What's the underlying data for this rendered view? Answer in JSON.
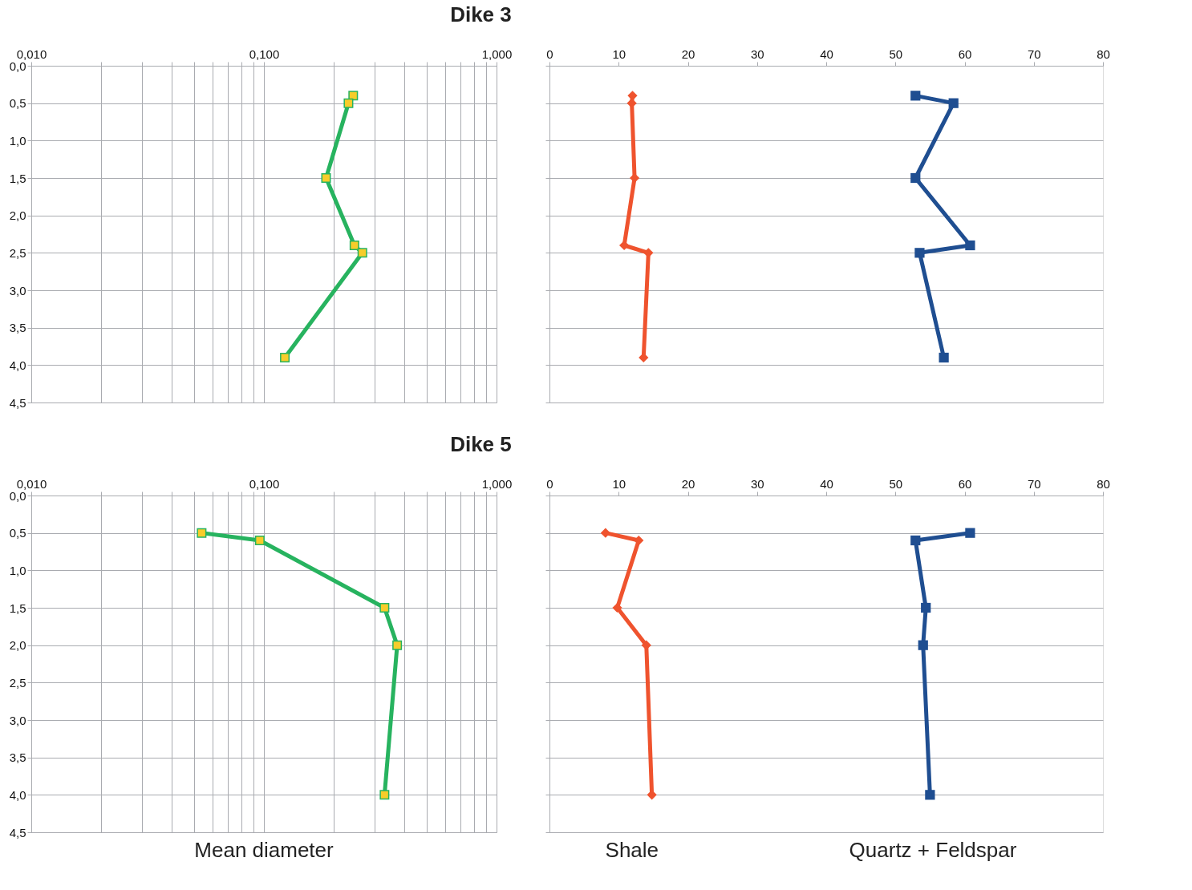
{
  "chart_data": [
    {
      "type": "line",
      "title": "Dike 3",
      "orientation": "horizontal",
      "log": "x",
      "grid": true,
      "marker": "square",
      "xlim": [
        0.01,
        1
      ],
      "xticks": [
        {
          "value": 0.01,
          "label": "0,010"
        },
        {
          "value": 0.02,
          "label": null
        },
        {
          "value": 0.03,
          "label": null
        },
        {
          "value": 0.04,
          "label": null
        },
        {
          "value": 0.05,
          "label": null
        },
        {
          "value": 0.06,
          "label": null
        },
        {
          "value": 0.07,
          "label": null
        },
        {
          "value": 0.08,
          "label": null
        },
        {
          "value": 0.09,
          "label": null
        },
        {
          "value": 0.1,
          "label": "0,100"
        },
        {
          "value": 0.2,
          "label": null
        },
        {
          "value": 0.3,
          "label": null
        },
        {
          "value": 0.4,
          "label": null
        },
        {
          "value": 0.5,
          "label": null
        },
        {
          "value": 0.6,
          "label": null
        },
        {
          "value": 0.7,
          "label": null
        },
        {
          "value": 0.8,
          "label": null
        },
        {
          "value": 0.9,
          "label": null
        },
        {
          "value": 1,
          "label": "1,000"
        }
      ],
      "ylim": [
        4.5,
        0
      ],
      "yticks": [
        {
          "value": 0,
          "label": "0,0"
        },
        {
          "value": 0.5,
          "label": "0,5"
        },
        {
          "value": 1,
          "label": "1,0"
        },
        {
          "value": 1.5,
          "label": "1,5"
        },
        {
          "value": 2,
          "label": "2,0"
        },
        {
          "value": 2.5,
          "label": "2,5"
        },
        {
          "value": 3,
          "label": "3,0"
        },
        {
          "value": 3.5,
          "label": "3,5"
        },
        {
          "value": 4,
          "label": "4,0"
        },
        {
          "value": 4.5,
          "label": "4,5"
        }
      ],
      "series": [
        {
          "color": "#27b35f",
          "x": [
            0.4,
            0.5,
            1.5,
            2.4,
            2.5,
            3.9
          ],
          "values": [
            0.242,
            0.231,
            0.185,
            0.245,
            0.265,
            0.123
          ]
        }
      ]
    },
    {
      "type": "line",
      "orientation": "horizontal",
      "grid": "y",
      "tick_labels": "x",
      "xlim": [
        0,
        80
      ],
      "xticks": [
        0,
        10,
        20,
        30,
        40,
        50,
        60,
        70,
        80
      ],
      "ylim": [
        4.5,
        0
      ],
      "yticks": [
        {
          "value": 0,
          "label": null
        },
        {
          "value": 0.5,
          "label": null
        },
        {
          "value": 1,
          "label": null
        },
        {
          "value": 1.5,
          "label": null
        },
        {
          "value": 2,
          "label": null
        },
        {
          "value": 2.5,
          "label": null
        },
        {
          "value": 3,
          "label": null
        },
        {
          "value": 3.5,
          "label": null
        },
        {
          "value": 4,
          "label": null
        },
        {
          "value": 4.5,
          "label": null
        }
      ],
      "series": [
        {
          "color": "#ef532e",
          "marker": "diamond",
          "x": [
            0.4,
            0.5,
            1.5,
            2.4,
            2.5,
            3.9
          ],
          "values": [
            12.0,
            11.9,
            12.3,
            10.8,
            14.3,
            13.6
          ]
        },
        {
          "color": "#1f4e91",
          "marker": "square",
          "x": [
            0.4,
            0.5,
            1.5,
            2.4,
            2.5,
            3.9
          ],
          "values": [
            52.9,
            58.4,
            52.9,
            60.8,
            53.5,
            57.0
          ]
        }
      ]
    },
    {
      "type": "line",
      "title": "Dike 5",
      "xlabel": "Mean diameter",
      "orientation": "horizontal",
      "log": "x",
      "grid": true,
      "marker": "square",
      "xlim": [
        0.01,
        1
      ],
      "xticks": [
        {
          "value": 0.01,
          "label": "0,010"
        },
        {
          "value": 0.02,
          "label": null
        },
        {
          "value": 0.03,
          "label": null
        },
        {
          "value": 0.04,
          "label": null
        },
        {
          "value": 0.05,
          "label": null
        },
        {
          "value": 0.06,
          "label": null
        },
        {
          "value": 0.07,
          "label": null
        },
        {
          "value": 0.08,
          "label": null
        },
        {
          "value": 0.09,
          "label": null
        },
        {
          "value": 0.1,
          "label": "0,100"
        },
        {
          "value": 0.2,
          "label": null
        },
        {
          "value": 0.3,
          "label": null
        },
        {
          "value": 0.4,
          "label": null
        },
        {
          "value": 0.5,
          "label": null
        },
        {
          "value": 0.6,
          "label": null
        },
        {
          "value": 0.7,
          "label": null
        },
        {
          "value": 0.8,
          "label": null
        },
        {
          "value": 0.9,
          "label": null
        },
        {
          "value": 1,
          "label": "1,000"
        }
      ],
      "ylim": [
        4.5,
        0
      ],
      "yticks": [
        {
          "value": 0,
          "label": "0,0"
        },
        {
          "value": 0.5,
          "label": "0,5"
        },
        {
          "value": 1,
          "label": "1,0"
        },
        {
          "value": 1.5,
          "label": "1,5"
        },
        {
          "value": 2,
          "label": "2,0"
        },
        {
          "value": 2.5,
          "label": "2,5"
        },
        {
          "value": 3,
          "label": "3,0"
        },
        {
          "value": 3.5,
          "label": "3,5"
        },
        {
          "value": 4,
          "label": "4,0"
        },
        {
          "value": 4.5,
          "label": "4,5"
        }
      ],
      "series": [
        {
          "color": "#27b35f",
          "x": [
            0.5,
            0.6,
            1.5,
            2.0,
            4.0
          ],
          "values": [
            0.054,
            0.096,
            0.33,
            0.374,
            0.33
          ]
        }
      ]
    },
    {
      "type": "line",
      "orientation": "horizontal",
      "grid": "y",
      "tick_labels": "x",
      "legend": "bottom",
      "xlim": [
        0,
        80
      ],
      "xticks": [
        0,
        10,
        20,
        30,
        40,
        50,
        60,
        70,
        80
      ],
      "ylim": [
        4.5,
        0
      ],
      "yticks": [
        {
          "value": 0,
          "label": null
        },
        {
          "value": 0.5,
          "label": null
        },
        {
          "value": 1,
          "label": null
        },
        {
          "value": 1.5,
          "label": null
        },
        {
          "value": 2,
          "label": null
        },
        {
          "value": 2.5,
          "label": null
        },
        {
          "value": 3,
          "label": null
        },
        {
          "value": 3.5,
          "label": null
        },
        {
          "value": 4,
          "label": null
        },
        {
          "value": 4.5,
          "label": null
        }
      ],
      "series": [
        {
          "name": "Shale",
          "color": "#ef532e",
          "marker": "diamond",
          "x": [
            0.5,
            0.6,
            1.5,
            2.0,
            4.0
          ],
          "values": [
            8.1,
            12.9,
            9.8,
            14.0,
            14.8
          ]
        },
        {
          "name": "Quartz + Feldspar",
          "color": "#1f4e91",
          "marker": "square",
          "x": [
            0.5,
            0.6,
            1.5,
            2.0,
            4.0
          ],
          "values": [
            60.8,
            52.9,
            54.4,
            54.0,
            55.0
          ]
        }
      ]
    }
  ]
}
